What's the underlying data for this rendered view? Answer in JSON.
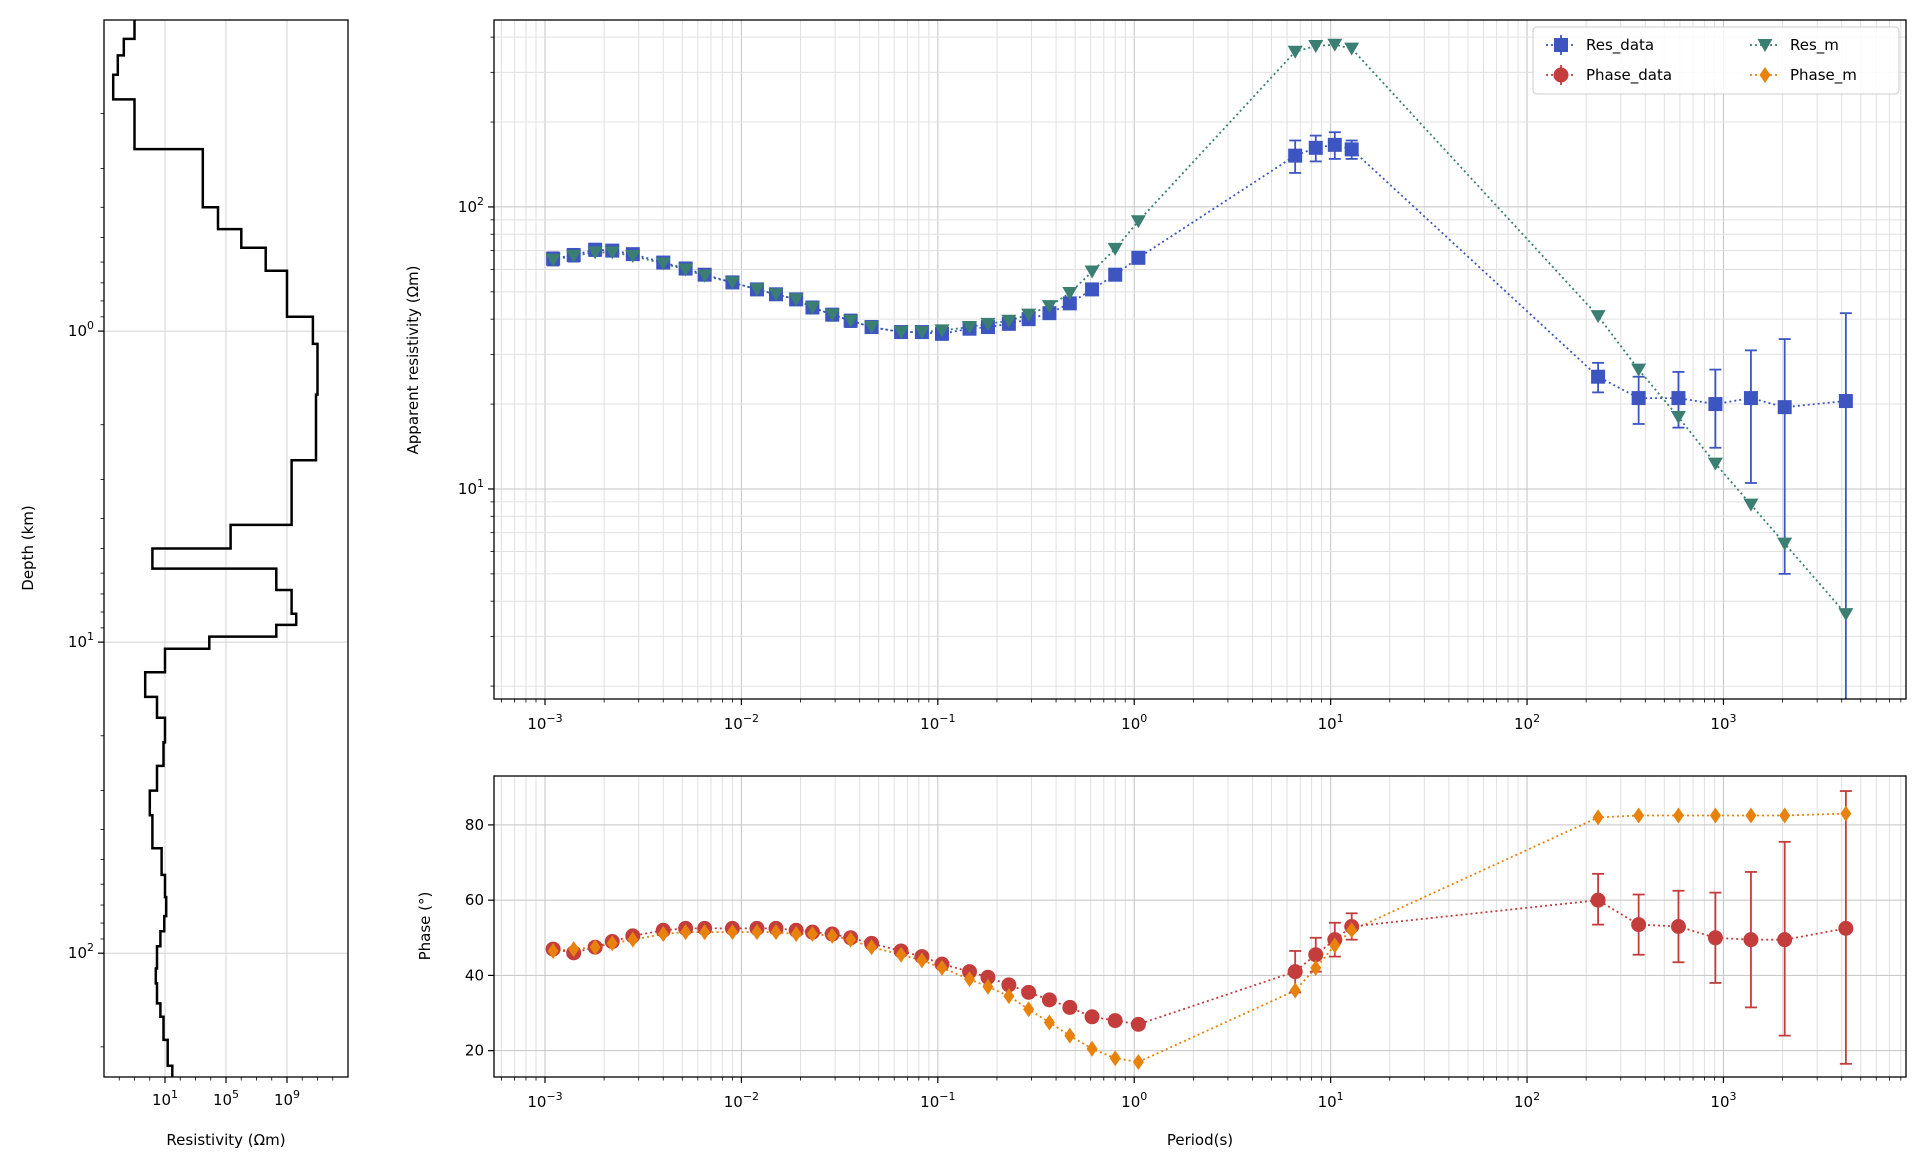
{
  "chart_data": [
    {
      "type": "line",
      "panel": "resistivity-model",
      "xlabel": "Resistivity (Ωm)",
      "ylabel": "Depth (km)",
      "xscale": "log",
      "yscale": "log",
      "y_inverted": true,
      "xlim": [
        0.001,
        10000000000000.0
      ],
      "ylim": [
        0.1,
        250
      ],
      "xticks": [
        {
          "value": 10,
          "base": "10",
          "exp": "1"
        },
        {
          "value": 100000,
          "base": "10",
          "exp": "5"
        },
        {
          "value": 1000000000,
          "base": "10",
          "exp": "9"
        }
      ],
      "yticks": [
        {
          "value": 1,
          "base": "10",
          "exp": "0"
        },
        {
          "value": 10,
          "base": "10",
          "exp": "1"
        },
        {
          "value": 100,
          "base": "10",
          "exp": "2"
        }
      ],
      "grid": true,
      "color": "#000000",
      "depth": [
        0.1,
        0.115,
        0.13,
        0.15,
        0.18,
        0.26,
        0.4,
        0.47,
        0.54,
        0.64,
        0.9,
        1.1,
        1.6,
        2.6,
        4.2,
        5.0,
        5.8,
        6.8,
        8.1,
        8.8,
        9.6,
        10.5,
        12.5,
        15.0,
        17.5,
        21,
        25,
        30,
        36,
        46,
        56,
        66,
        76,
        85,
        95,
        112,
        125,
        145,
        160,
        190,
        230
      ],
      "resistivity": [
        0.1,
        0.02,
        0.008,
        0.004,
        0.1,
        3000,
        30000,
        1000000.0,
        40000000.0,
        1000000000.0,
        50000000000.0,
        100000000000.0,
        80000000000.0,
        2000000000.0,
        200000.0,
        1.5,
        200000000.0,
        2000000000.0,
        4000000000.0,
        200000000.0,
        8000,
        10,
        0.5,
        3,
        10,
        8,
        3,
        1,
        1.5,
        6,
        10,
        12,
        9,
        5,
        3,
        2.5,
        3,
        5,
        8,
        15,
        30
      ]
    },
    {
      "type": "line",
      "panel": "apparent-resistivity",
      "xlabel": "",
      "ylabel": "Apparent resistivity (Ωm)",
      "xscale": "log",
      "yscale": "log",
      "xlim": [
        0.00055,
        8500
      ],
      "ylim": [
        1.8,
        460
      ],
      "xticks": [
        {
          "value": 0.001,
          "base": "10",
          "exp": "−3"
        },
        {
          "value": 0.01,
          "base": "10",
          "exp": "−2"
        },
        {
          "value": 0.1,
          "base": "10",
          "exp": "−1"
        },
        {
          "value": 1,
          "base": "10",
          "exp": "0"
        },
        {
          "value": 10,
          "base": "10",
          "exp": "1"
        },
        {
          "value": 100,
          "base": "10",
          "exp": "2"
        },
        {
          "value": 1000,
          "base": "10",
          "exp": "3"
        }
      ],
      "yticks": [
        {
          "value": 10,
          "base": "10",
          "exp": "1"
        },
        {
          "value": 100,
          "base": "10",
          "exp": "2"
        }
      ],
      "grid": true,
      "legend_position": "top-right",
      "x": [
        0.0011,
        0.0014,
        0.0018,
        0.0022,
        0.0028,
        0.004,
        0.0052,
        0.0065,
        0.009,
        0.012,
        0.015,
        0.019,
        0.023,
        0.029,
        0.036,
        0.046,
        0.065,
        0.083,
        0.105,
        0.145,
        0.18,
        0.23,
        0.29,
        0.37,
        0.47,
        0.61,
        0.8,
        1.05,
        6.6,
        8.4,
        10.5,
        12.8,
        230,
        370,
        590,
        910,
        1380,
        2050,
        4200
      ],
      "series": [
        {
          "name": "Res_data",
          "color": "#3d55c1",
          "marker": "square",
          "values": [
            65.5,
            67.5,
            70.5,
            70,
            68,
            63.5,
            60.5,
            57.5,
            54,
            51,
            49,
            47,
            44,
            41.5,
            39.5,
            37.5,
            36,
            36,
            35.5,
            37,
            37.5,
            38.5,
            40,
            42,
            45.5,
            51,
            57.5,
            66,
            152,
            162,
            166,
            160,
            25,
            21,
            21,
            20,
            21,
            19.5,
            20.5
          ],
          "err_lo": [
            62,
            64,
            67,
            67,
            65,
            60.5,
            57.5,
            55,
            52,
            49,
            47,
            45,
            42,
            39.5,
            37.5,
            35.7,
            34.3,
            34.3,
            33.8,
            35.3,
            35.8,
            36.8,
            38.3,
            40.2,
            43.5,
            48.8,
            55,
            63,
            132,
            145,
            148,
            148,
            22,
            17,
            16.5,
            14,
            10.5,
            5,
            0.5
          ],
          "err_hi": [
            69,
            71,
            74,
            73,
            71,
            66.5,
            63.5,
            60,
            56,
            53,
            51,
            49,
            46,
            43.5,
            41.5,
            39.3,
            37.7,
            37.7,
            37.2,
            38.7,
            39.2,
            40.2,
            41.7,
            43.8,
            47.5,
            53.2,
            60,
            69,
            172,
            179,
            184,
            172,
            28,
            25,
            26,
            26.5,
            31,
            34,
            42
          ]
        },
        {
          "name": "Res_m",
          "color": "#3a7f72",
          "marker": "triangle-down",
          "values": [
            65,
            67,
            69,
            69,
            67,
            63,
            60,
            57,
            54,
            51,
            49,
            47,
            44,
            41.5,
            39.5,
            37.5,
            36,
            36,
            36.5,
            37.5,
            38.5,
            39.5,
            41.5,
            44.5,
            49.5,
            59,
            71,
            89,
            355,
            372,
            376,
            364,
            41,
            26.5,
            18,
            12.3,
            8.8,
            6.4,
            3.6
          ]
        }
      ]
    },
    {
      "type": "line",
      "panel": "phase",
      "xlabel": "Period(s)",
      "ylabel": "Phase (°)",
      "xscale": "log",
      "yscale": "linear",
      "xlim": [
        0.00055,
        8500
      ],
      "ylim": [
        13,
        93
      ],
      "xticks": [
        {
          "value": 0.001,
          "base": "10",
          "exp": "−3"
        },
        {
          "value": 0.01,
          "base": "10",
          "exp": "−2"
        },
        {
          "value": 0.1,
          "base": "10",
          "exp": "−1"
        },
        {
          "value": 1,
          "base": "10",
          "exp": "0"
        },
        {
          "value": 10,
          "base": "10",
          "exp": "1"
        },
        {
          "value": 100,
          "base": "10",
          "exp": "2"
        },
        {
          "value": 1000,
          "base": "10",
          "exp": "3"
        }
      ],
      "yticks": [
        {
          "value": 20,
          "label": "20"
        },
        {
          "value": 40,
          "label": "40"
        },
        {
          "value": 60,
          "label": "60"
        },
        {
          "value": 80,
          "label": "80"
        }
      ],
      "grid": true,
      "x": [
        0.0011,
        0.0014,
        0.0018,
        0.0022,
        0.0028,
        0.004,
        0.0052,
        0.0065,
        0.009,
        0.012,
        0.015,
        0.019,
        0.023,
        0.029,
        0.036,
        0.046,
        0.065,
        0.083,
        0.105,
        0.145,
        0.18,
        0.23,
        0.29,
        0.37,
        0.47,
        0.61,
        0.8,
        1.05,
        6.6,
        8.4,
        10.5,
        12.8,
        230,
        370,
        590,
        910,
        1380,
        2050,
        4200
      ],
      "series": [
        {
          "name": "Phase_data",
          "color": "#c33d3d",
          "marker": "circle",
          "values": [
            47,
            46,
            47.5,
            49,
            50.5,
            52,
            52.5,
            52.5,
            52.5,
            52.5,
            52.5,
            52,
            51.5,
            51,
            50,
            48.5,
            46.5,
            45,
            43,
            41,
            39.5,
            37.5,
            35.5,
            33.5,
            31.5,
            29,
            28,
            27,
            41,
            45.5,
            49.5,
            53,
            60,
            53.5,
            53,
            50,
            49.5,
            49.5,
            52.5
          ],
          "err_lo": [
            46,
            45,
            46.5,
            48,
            49.5,
            51,
            51.5,
            51.5,
            51.5,
            51.5,
            51.5,
            51,
            50.5,
            50,
            49,
            47.5,
            45.5,
            44,
            42,
            40,
            38.5,
            36.5,
            34.5,
            32.5,
            30.5,
            28,
            27,
            26,
            35.5,
            41,
            45,
            49.5,
            53.5,
            45.5,
            43.5,
            38,
            31.5,
            24,
            16.5
          ],
          "err_hi": [
            48,
            47,
            48.5,
            50,
            51.5,
            53,
            53.5,
            53.5,
            53.5,
            53.5,
            53.5,
            53,
            52.5,
            52,
            51,
            49.5,
            47.5,
            46,
            44,
            42,
            40.5,
            38.5,
            36.5,
            34.5,
            32.5,
            30,
            29,
            28,
            46.5,
            50,
            54,
            56.5,
            67,
            61.5,
            62.5,
            62,
            67.5,
            75.5,
            89
          ]
        },
        {
          "name": "Phase_m",
          "color": "#e8820c",
          "marker": "diamond",
          "values": [
            46.5,
            47,
            47.5,
            48.5,
            49.5,
            51,
            51.5,
            51.5,
            51.5,
            51.5,
            51.5,
            51,
            51,
            50.5,
            49.5,
            47.5,
            45.5,
            44,
            42,
            39,
            37,
            34.5,
            31,
            27.5,
            24,
            20.5,
            18,
            17,
            36,
            42,
            48,
            52,
            82,
            82.5,
            82.5,
            82.5,
            82.5,
            82.5,
            83
          ]
        }
      ]
    }
  ],
  "legend": {
    "items": [
      {
        "label": "Res_data",
        "color": "#3d55c1",
        "marker": "square"
      },
      {
        "label": "Res_m",
        "color": "#3a7f72",
        "marker": "triangle-down"
      },
      {
        "label": "Phase_data",
        "color": "#c33d3d",
        "marker": "circle"
      },
      {
        "label": "Phase_m",
        "color": "#e8820c",
        "marker": "diamond"
      }
    ]
  }
}
